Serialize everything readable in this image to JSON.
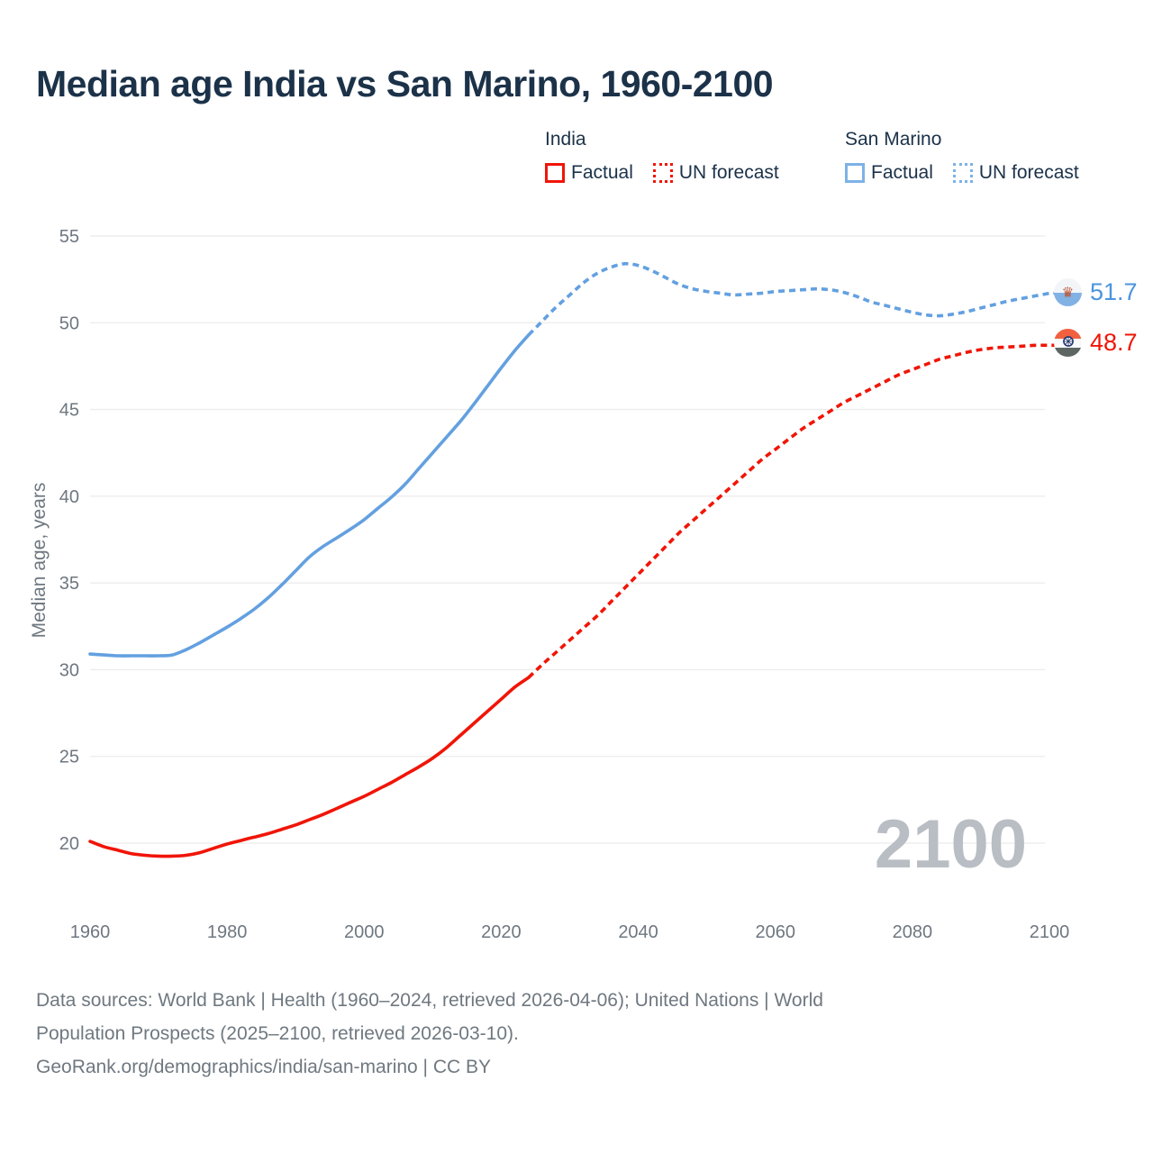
{
  "title": "Median age India vs San Marino, 1960-2100",
  "legend": {
    "india": {
      "label": "India",
      "factual": "Factual",
      "forecast": "UN forecast"
    },
    "san_marino": {
      "label": "San Marino",
      "factual": "Factual",
      "forecast": "UN forecast"
    }
  },
  "colors": {
    "india_line": "#f01507",
    "san_marino_line": "#63a0e0",
    "india_value_label": "#f01507",
    "san_marino_value_label": "#4a94dd",
    "title_text": "#1b3249",
    "axis_text": "#6e7780",
    "gridline": "#ededee",
    "watermark": "#b9bec4"
  },
  "chart_data": {
    "type": "line",
    "title": "Median age India vs San Marino, 1960-2100",
    "xlabel": "",
    "ylabel": "Median age, years",
    "x_ticks": [
      1960,
      1980,
      2000,
      2020,
      2040,
      2060,
      2080,
      2100
    ],
    "y_ticks": [
      55,
      50,
      45,
      40,
      35,
      30,
      25,
      20
    ],
    "xlim": [
      1960,
      2100
    ],
    "ylim": [
      18.5,
      56
    ],
    "grid": "horizontal-only",
    "legend_position": "top",
    "watermark": "2100",
    "series": [
      {
        "name": "India Factual",
        "country": "India",
        "kind": "factual",
        "style": "solid",
        "color_key": "india_line",
        "start_year": 1960,
        "step": 2,
        "values": [
          20.1,
          19.8,
          19.6,
          19.4,
          19.3,
          19.25,
          19.25,
          19.3,
          19.45,
          19.7,
          19.95,
          20.15,
          20.35,
          20.55,
          20.8,
          21.05,
          21.35,
          21.65,
          22.0,
          22.35,
          22.7,
          23.1,
          23.5,
          23.95,
          24.4,
          24.9,
          25.5,
          26.2,
          26.9,
          27.6,
          28.3,
          29.0,
          29.55
        ]
      },
      {
        "name": "India UN forecast",
        "country": "India",
        "kind": "forecast",
        "style": "dashed",
        "color_key": "india_line",
        "start_year": 2024,
        "step": 2,
        "values": [
          29.55,
          30.3,
          31.0,
          31.7,
          32.4,
          33.1,
          33.9,
          34.7,
          35.5,
          36.3,
          37.1,
          37.9,
          38.6,
          39.3,
          40.0,
          40.7,
          41.4,
          42.1,
          42.7,
          43.3,
          43.9,
          44.4,
          44.9,
          45.4,
          45.8,
          46.2,
          46.6,
          47.0,
          47.3,
          47.6,
          47.9,
          48.1,
          48.3,
          48.45,
          48.55,
          48.6,
          48.65,
          48.7,
          48.7
        ]
      },
      {
        "name": "San Marino Factual",
        "country": "San Marino",
        "kind": "factual",
        "style": "solid",
        "color_key": "san_marino_line",
        "start_year": 1960,
        "step": 2,
        "values": [
          30.9,
          30.85,
          30.8,
          30.8,
          30.8,
          30.8,
          30.85,
          31.15,
          31.55,
          32.0,
          32.45,
          32.95,
          33.5,
          34.15,
          34.9,
          35.7,
          36.5,
          37.1,
          37.6,
          38.1,
          38.65,
          39.3,
          39.95,
          40.7,
          41.6,
          42.5,
          43.4,
          44.3,
          45.3,
          46.35,
          47.4,
          48.4,
          49.3
        ]
      },
      {
        "name": "San Marino UN forecast",
        "country": "San Marino",
        "kind": "forecast",
        "style": "dashed",
        "color_key": "san_marino_line",
        "start_year": 2024,
        "step": 2,
        "values": [
          49.3,
          50.1,
          50.9,
          51.6,
          52.3,
          52.85,
          53.2,
          53.4,
          53.3,
          53.0,
          52.6,
          52.2,
          51.95,
          51.8,
          51.7,
          51.6,
          51.65,
          51.7,
          51.8,
          51.85,
          51.9,
          51.95,
          51.9,
          51.75,
          51.5,
          51.2,
          51.0,
          50.8,
          50.6,
          50.45,
          50.4,
          50.5,
          50.65,
          50.85,
          51.05,
          51.25,
          51.4,
          51.55,
          51.7
        ]
      }
    ],
    "end_labels": [
      {
        "country": "San Marino",
        "value": "51.7"
      },
      {
        "country": "India",
        "value": "48.7"
      }
    ]
  },
  "footer": {
    "line1": "Data sources: World Bank | Health (1960–2024, retrieved 2026-04-06); United Nations | World",
    "line2": "Population Prospects (2025–2100, retrieved 2026-03-10).",
    "line3": "GeoRank.org/demographics/india/san-marino | CC BY"
  }
}
